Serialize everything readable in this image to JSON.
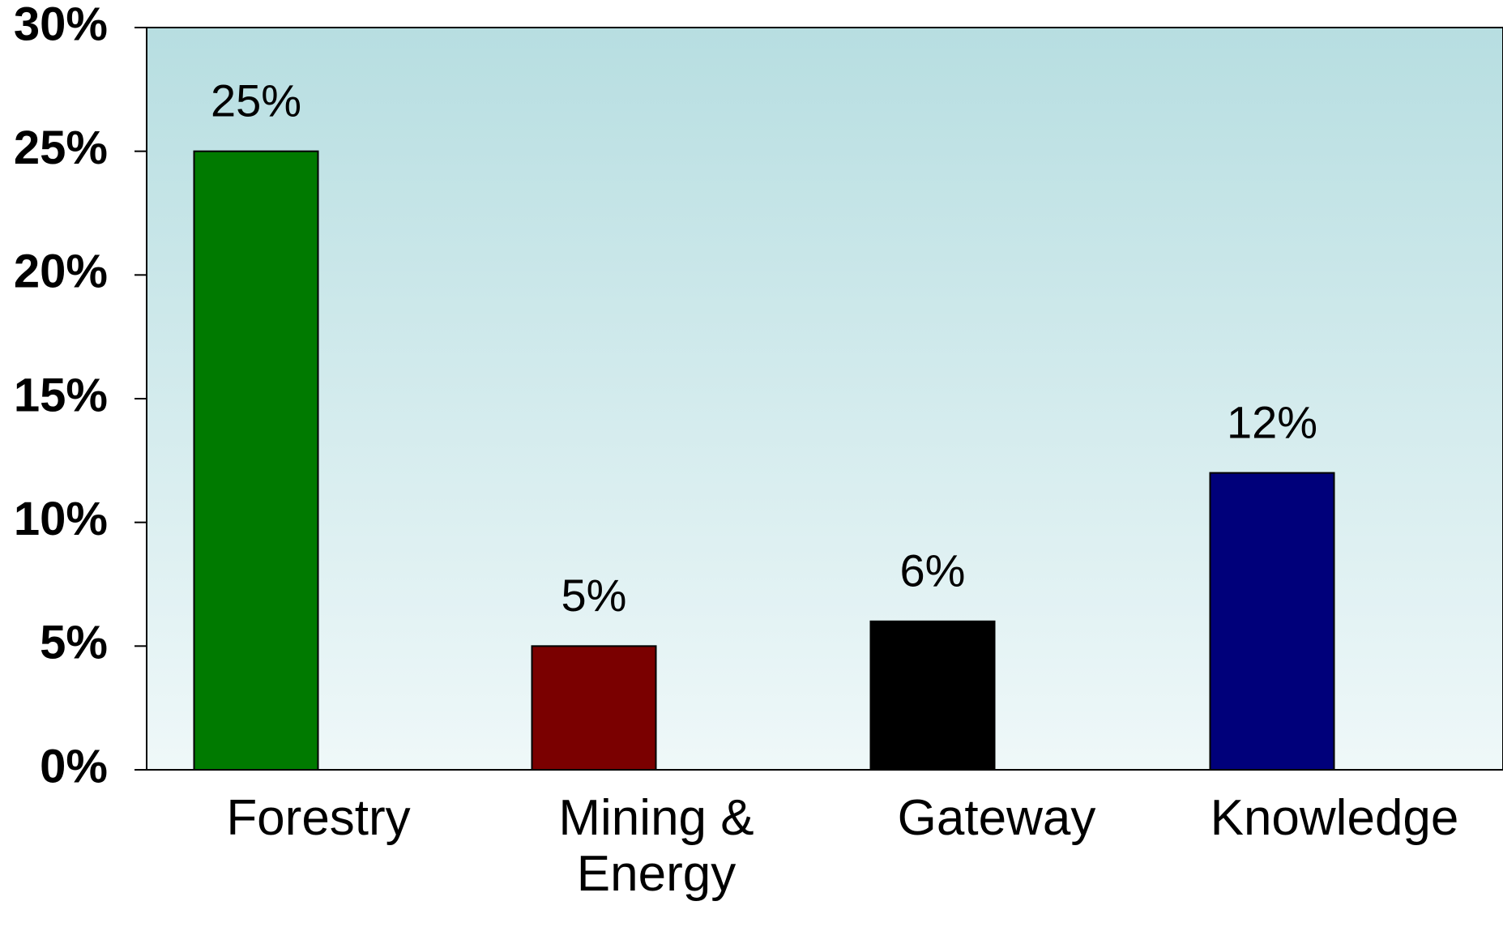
{
  "chart_data": {
    "type": "bar",
    "categories": [
      "Forestry",
      "Mining & Energy",
      "Gateway",
      "Knowledge"
    ],
    "values": [
      25,
      5,
      6,
      12
    ],
    "value_labels": [
      "25%",
      "5%",
      "6%",
      "12%"
    ],
    "colors": [
      "#007a00",
      "#7a0000",
      "#000000",
      "#00007a"
    ],
    "ylim": [
      0,
      30
    ],
    "yticks": [
      {
        "value": 0,
        "label": "0%"
      },
      {
        "value": 5,
        "label": "5%"
      },
      {
        "value": 10,
        "label": "10%"
      },
      {
        "value": 15,
        "label": "15%"
      },
      {
        "value": 20,
        "label": "20%"
      },
      {
        "value": 25,
        "label": "25%"
      },
      {
        "value": 30,
        "label": "30%"
      }
    ]
  }
}
